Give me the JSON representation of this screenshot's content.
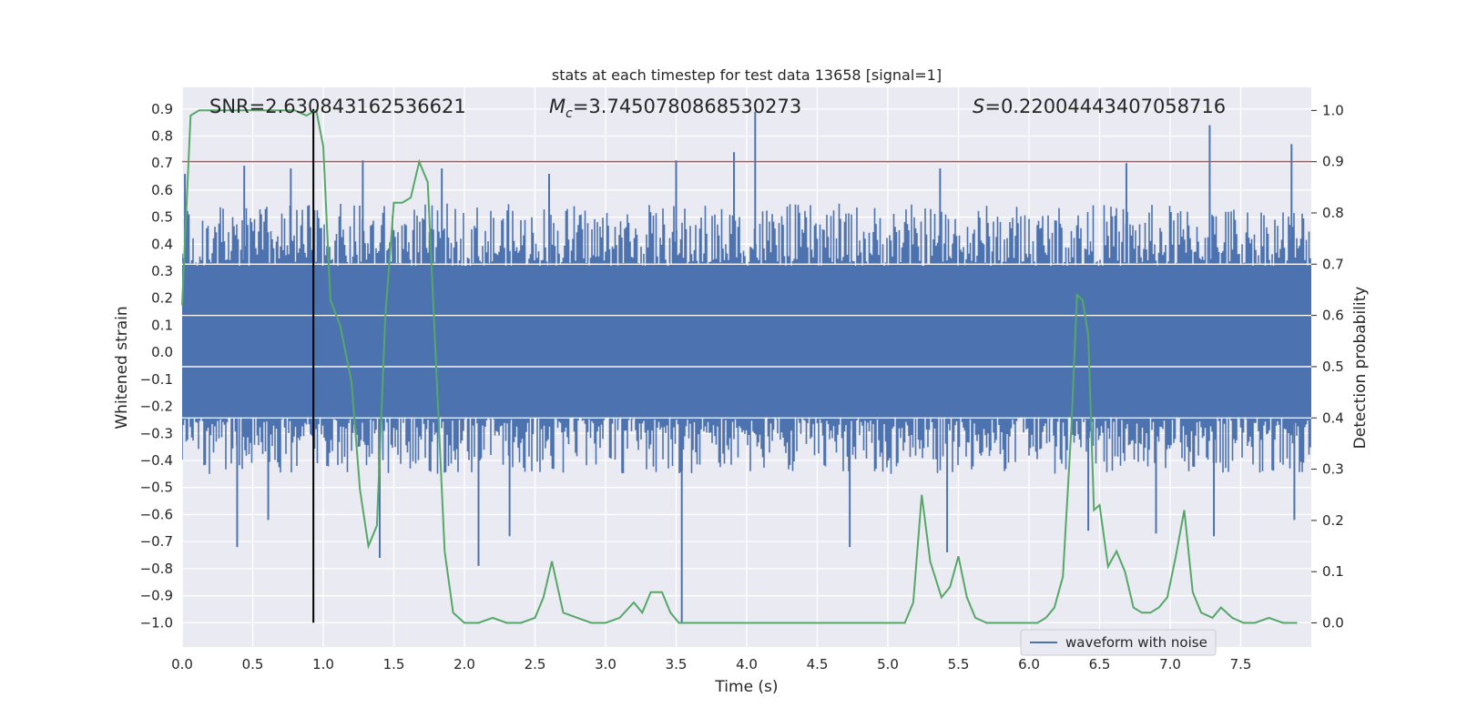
{
  "chart_data": {
    "type": "line",
    "title": "stats at each timestep for test data 13658 [signal=1]",
    "xlabel": "Time (s)",
    "ylabel_left": "Whitened strain",
    "ylabel_right": "Detection probability",
    "xlim": [
      0.0,
      8.0
    ],
    "ylim_left": [
      -1.09,
      0.98
    ],
    "ylim_right": [
      -0.047,
      1.045
    ],
    "x_ticks": [
      "0.0",
      "0.5",
      "1.0",
      "1.5",
      "2.0",
      "2.5",
      "3.0",
      "3.5",
      "4.0",
      "4.5",
      "5.0",
      "5.5",
      "6.0",
      "6.5",
      "7.0",
      "7.5"
    ],
    "left_ticks": [
      "0.9",
      "0.8",
      "0.7",
      "0.6",
      "0.5",
      "0.4",
      "0.3",
      "0.2",
      "0.1",
      "0.0",
      "−0.1",
      "−0.2",
      "−0.3",
      "−0.4",
      "−0.5",
      "−0.6",
      "−0.7",
      "−0.8",
      "−0.9",
      "−1.0"
    ],
    "right_ticks": [
      "1.0",
      "0.9",
      "0.8",
      "0.7",
      "0.6",
      "0.5",
      "0.4",
      "0.3",
      "0.2",
      "0.1",
      "0.0"
    ],
    "grid": true,
    "legend": {
      "position": "lower-right",
      "entries": [
        "waveform with noise"
      ]
    },
    "annotations": {
      "snr": "SNR=2.630843162536621",
      "mc_symbol": "M",
      "mc_sub": "c",
      "mc_value": "=3.7450780868530273",
      "s_symbol": "S",
      "s_value": "=0.22004443407058716"
    },
    "threshold": {
      "axis": "right",
      "value": 0.9,
      "color": "#c44e52"
    },
    "marker_time": 0.93,
    "colors": {
      "waveform": "#4c72b0",
      "probability": "#55a868",
      "marker": "#000000",
      "background": "#eaeaf2",
      "grid": "#ffffff"
    },
    "series": [
      {
        "name": "waveform with noise",
        "axis": "left",
        "type": "noise-band",
        "band_lower": -0.24,
        "band_upper": 0.32,
        "typical_lower": -0.45,
        "typical_upper": 0.55,
        "peaks": [
          [
            0.02,
            0.66
          ],
          [
            0.44,
            0.69
          ],
          [
            0.77,
            0.68
          ],
          [
            1.28,
            0.71
          ],
          [
            1.84,
            0.68
          ],
          [
            2.6,
            0.66
          ],
          [
            3.5,
            0.71
          ],
          [
            3.91,
            0.74
          ],
          [
            4.06,
            0.89
          ],
          [
            5.37,
            0.68
          ],
          [
            6.69,
            0.7
          ],
          [
            7.28,
            0.84
          ],
          [
            7.86,
            0.77
          ],
          [
            0.39,
            -0.72
          ],
          [
            0.61,
            -0.62
          ],
          [
            1.4,
            -0.76
          ],
          [
            2.1,
            -0.79
          ],
          [
            2.32,
            -0.68
          ],
          [
            3.54,
            -1.0
          ],
          [
            4.73,
            -0.72
          ],
          [
            5.42,
            -0.74
          ],
          [
            6.42,
            -0.66
          ],
          [
            6.9,
            -0.67
          ],
          [
            7.31,
            -0.68
          ],
          [
            7.88,
            -0.62
          ]
        ]
      },
      {
        "name": "detection probability",
        "axis": "right",
        "x": [
          0.0,
          0.06,
          0.12,
          0.2,
          0.4,
          0.6,
          0.8,
          0.88,
          0.95,
          1.0,
          1.05,
          1.12,
          1.2,
          1.26,
          1.32,
          1.38,
          1.44,
          1.5,
          1.56,
          1.62,
          1.68,
          1.74,
          1.8,
          1.86,
          1.92,
          2.0,
          2.1,
          2.2,
          2.3,
          2.4,
          2.5,
          2.56,
          2.62,
          2.7,
          2.8,
          2.9,
          3.0,
          3.1,
          3.2,
          3.26,
          3.32,
          3.4,
          3.46,
          3.52,
          3.6,
          4.0,
          4.5,
          5.0,
          5.12,
          5.18,
          5.24,
          5.3,
          5.38,
          5.44,
          5.5,
          5.56,
          5.62,
          5.7,
          6.0,
          6.06,
          6.12,
          6.18,
          6.24,
          6.3,
          6.34,
          6.38,
          6.42,
          6.46,
          6.5,
          6.56,
          6.62,
          6.68,
          6.74,
          6.8,
          6.86,
          6.92,
          6.98,
          7.04,
          7.1,
          7.16,
          7.22,
          7.3,
          7.36,
          7.44,
          7.52,
          7.6,
          7.7,
          7.8,
          7.9
        ],
        "values": [
          0.62,
          0.99,
          1.0,
          1.0,
          1.0,
          1.0,
          1.0,
          0.99,
          1.0,
          0.93,
          0.63,
          0.58,
          0.47,
          0.26,
          0.15,
          0.19,
          0.6,
          0.82,
          0.82,
          0.83,
          0.9,
          0.86,
          0.5,
          0.14,
          0.02,
          0.0,
          0.0,
          0.01,
          0.0,
          0.0,
          0.01,
          0.05,
          0.12,
          0.02,
          0.01,
          0.0,
          0.0,
          0.01,
          0.04,
          0.02,
          0.06,
          0.06,
          0.02,
          0.0,
          0.0,
          0.0,
          0.0,
          0.0,
          0.0,
          0.04,
          0.25,
          0.12,
          0.05,
          0.07,
          0.13,
          0.05,
          0.01,
          0.0,
          0.0,
          0.0,
          0.01,
          0.03,
          0.09,
          0.38,
          0.64,
          0.63,
          0.56,
          0.22,
          0.23,
          0.11,
          0.14,
          0.1,
          0.03,
          0.02,
          0.02,
          0.03,
          0.05,
          0.13,
          0.22,
          0.06,
          0.02,
          0.01,
          0.03,
          0.01,
          0.0,
          0.0,
          0.01,
          0.0,
          0.0
        ]
      }
    ]
  }
}
